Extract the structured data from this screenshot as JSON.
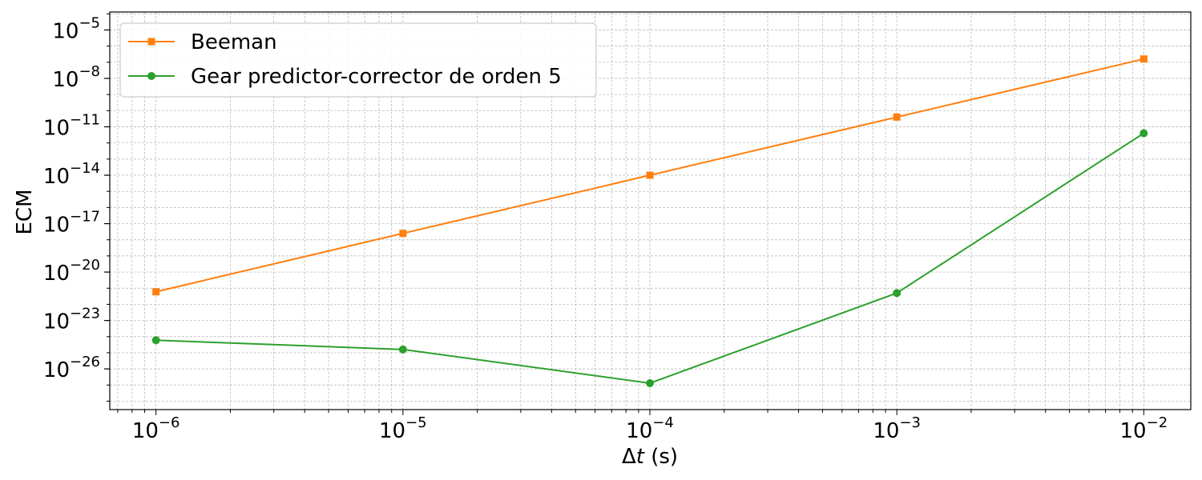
{
  "chart_data": {
    "type": "line",
    "title": "",
    "xlabel": {
      "symbol": "Δ",
      "var": "t",
      "unit": " (s)"
    },
    "ylabel": "ECM",
    "xscale": "log",
    "yscale": "log",
    "xlim": [
      6.5e-07,
      0.0155
    ],
    "ylim": [
      3e-29,
      0.00013
    ],
    "grid": true,
    "legend": "top-left",
    "x": [
      1e-06,
      1e-05,
      0.0001,
      0.001,
      0.01
    ],
    "x_ticks": [
      {
        "base": "10",
        "exp": "−6",
        "value": 1e-06
      },
      {
        "base": "10",
        "exp": "−5",
        "value": 1e-05
      },
      {
        "base": "10",
        "exp": "−4",
        "value": 0.0001
      },
      {
        "base": "10",
        "exp": "−3",
        "value": 0.001
      },
      {
        "base": "10",
        "exp": "−2",
        "value": 0.01
      }
    ],
    "y_ticks": [
      {
        "base": "10",
        "exp": "−5",
        "value": 1e-05
      },
      {
        "base": "10",
        "exp": "−8",
        "value": 1e-08
      },
      {
        "base": "10",
        "exp": "−11",
        "value": 1e-11
      },
      {
        "base": "10",
        "exp": "−14",
        "value": 1e-14
      },
      {
        "base": "10",
        "exp": "−17",
        "value": 1e-17
      },
      {
        "base": "10",
        "exp": "−20",
        "value": 1e-20
      },
      {
        "base": "10",
        "exp": "−23",
        "value": 1e-23
      },
      {
        "base": "10",
        "exp": "−26",
        "value": 1e-26
      }
    ],
    "series": [
      {
        "name": "Beeman",
        "color": "#ff7f0e",
        "marker": "square",
        "values": [
          6e-22,
          2.5e-18,
          1e-14,
          4e-11,
          1.6e-07
        ]
      },
      {
        "name": "Gear predictor-corrector de orden 5",
        "color": "#2ca02c",
        "marker": "circle",
        "values": [
          6e-25,
          1.6e-25,
          1.3e-27,
          5e-22,
          4e-12
        ]
      }
    ]
  }
}
